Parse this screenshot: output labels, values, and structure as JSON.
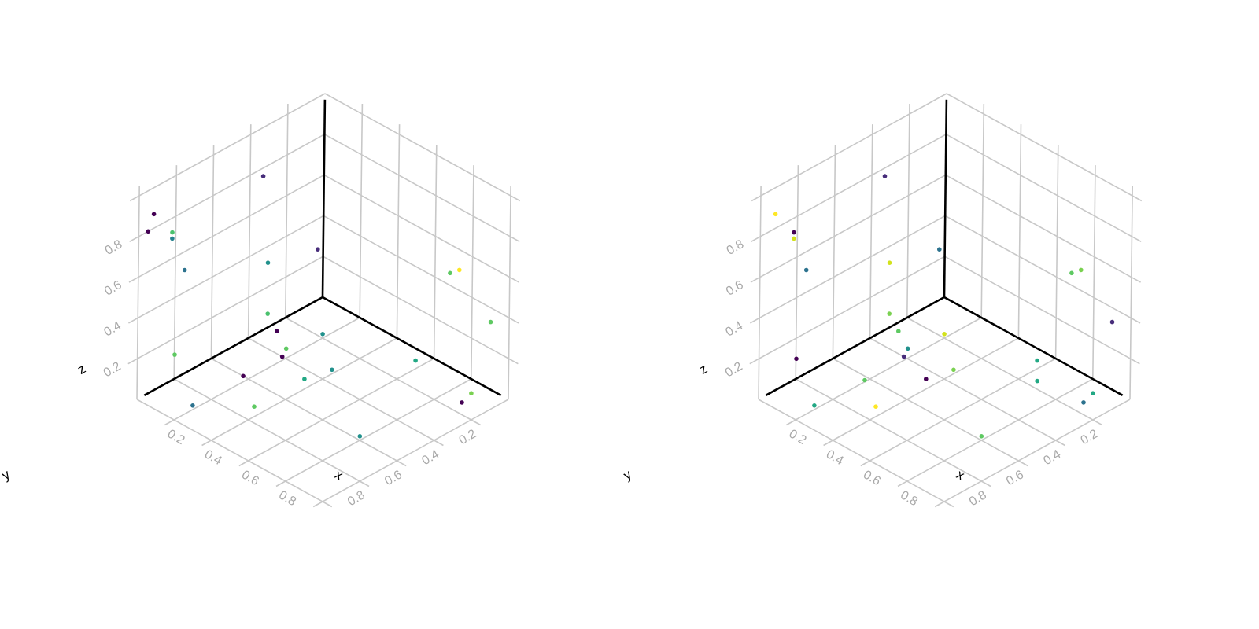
{
  "chart_data": [
    {
      "type": "scatter3d",
      "axes": {
        "x": {
          "label": "x",
          "ticks": [
            "0.2",
            "0.4",
            "0.6",
            "0.8"
          ]
        },
        "y": {
          "label": "y",
          "ticks": [
            "0.2",
            "0.4",
            "0.6",
            "0.8"
          ]
        },
        "z": {
          "label": "z",
          "ticks": [
            "0.2",
            "0.4",
            "0.6",
            "0.8"
          ]
        }
      },
      "grid": true,
      "colormap": "viridis",
      "points": [
        {
          "x": 0.05,
          "y": 0.97,
          "z": 0.92,
          "color": "#440154"
        },
        {
          "x": 0.05,
          "y": 0.38,
          "z": 0.81,
          "color": "#472c7a"
        },
        {
          "x": 0.02,
          "y": 0.97,
          "z": 0.82,
          "color": "#440154"
        },
        {
          "x": 0.1,
          "y": 0.92,
          "z": 0.83,
          "color": "#4ac16d"
        },
        {
          "x": 0.1,
          "y": 0.92,
          "z": 0.8,
          "color": "#26828e"
        },
        {
          "x": 0.05,
          "y": 0.8,
          "z": 0.56,
          "color": "#2c728e"
        },
        {
          "x": 0.15,
          "y": 0.95,
          "z": 0.27,
          "color": "#5ec962"
        },
        {
          "x": 0.25,
          "y": 0.55,
          "z": 0.32,
          "color": "#4ac16d"
        },
        {
          "x": 0.3,
          "y": 0.55,
          "z": 0.26,
          "color": "#440154"
        },
        {
          "x": 0.1,
          "y": 0.4,
          "z": 0.42,
          "color": "#21918c"
        },
        {
          "x": 0.05,
          "y": 0.08,
          "z": 0.3,
          "color": "#472c7a"
        },
        {
          "x": 0.35,
          "y": 0.78,
          "z": 0.18,
          "color": "#440154"
        },
        {
          "x": 0.4,
          "y": 0.62,
          "z": 0.22,
          "color": "#440154"
        },
        {
          "x": 0.45,
          "y": 0.65,
          "z": 0.3,
          "color": "#5ec962"
        },
        {
          "x": 0.75,
          "y": 0.02,
          "z": 0.52,
          "color": "#fde725"
        },
        {
          "x": 0.7,
          "y": 0.02,
          "z": 0.48,
          "color": "#5ec962"
        },
        {
          "x": 0.95,
          "y": 0.05,
          "z": 0.38,
          "color": "#5ec962"
        },
        {
          "x": 0.2,
          "y": 0.2,
          "z": 0.02,
          "color": "#21918c"
        },
        {
          "x": 0.5,
          "y": 0.6,
          "z": 0.15,
          "color": "#22a884"
        },
        {
          "x": 0.45,
          "y": 0.82,
          "z": 0.1,
          "color": "#5ec962"
        },
        {
          "x": 0.4,
          "y": 0.35,
          "z": 0.02,
          "color": "#21918c"
        },
        {
          "x": 0.6,
          "y": 0.1,
          "z": 0.04,
          "color": "#22a884"
        },
        {
          "x": 0.9,
          "y": 0.1,
          "z": 0.03,
          "color": "#7ad151"
        },
        {
          "x": 0.9,
          "y": 0.15,
          "z": 0.01,
          "color": "#440154"
        },
        {
          "x": 0.8,
          "y": 0.6,
          "z": 0.02,
          "color": "#21918c"
        },
        {
          "x": 0.2,
          "y": 0.9,
          "z": 0.02,
          "color": "#2c728e"
        }
      ]
    },
    {
      "type": "scatter3d",
      "axes": {
        "x": {
          "label": "x",
          "ticks": [
            "0.2",
            "0.4",
            "0.6",
            "0.8"
          ]
        },
        "y": {
          "label": "y",
          "ticks": [
            "0.2",
            "0.4",
            "0.6",
            "0.8"
          ]
        },
        "z": {
          "label": "z",
          "ticks": [
            "0.2",
            "0.4",
            "0.6",
            "0.8"
          ]
        }
      },
      "grid": true,
      "colormap": "viridis",
      "points": [
        {
          "x": 0.05,
          "y": 0.97,
          "z": 0.92,
          "color": "#fde725"
        },
        {
          "x": 0.05,
          "y": 0.38,
          "z": 0.81,
          "color": "#472c7a"
        },
        {
          "x": 0.1,
          "y": 0.92,
          "z": 0.83,
          "color": "#440154"
        },
        {
          "x": 0.1,
          "y": 0.92,
          "z": 0.8,
          "color": "#d2e21b"
        },
        {
          "x": 0.05,
          "y": 0.8,
          "z": 0.56,
          "color": "#2c728e"
        },
        {
          "x": 0.15,
          "y": 0.95,
          "z": 0.25,
          "color": "#440154"
        },
        {
          "x": 0.25,
          "y": 0.55,
          "z": 0.32,
          "color": "#7ad151"
        },
        {
          "x": 0.3,
          "y": 0.55,
          "z": 0.26,
          "color": "#5ec962"
        },
        {
          "x": 0.1,
          "y": 0.4,
          "z": 0.42,
          "color": "#d2e21b"
        },
        {
          "x": 0.05,
          "y": 0.08,
          "z": 0.3,
          "color": "#2c728e"
        },
        {
          "x": 0.35,
          "y": 0.78,
          "z": 0.16,
          "color": "#5ec962"
        },
        {
          "x": 0.4,
          "y": 0.62,
          "z": 0.22,
          "color": "#472c7a"
        },
        {
          "x": 0.45,
          "y": 0.65,
          "z": 0.3,
          "color": "#21918c"
        },
        {
          "x": 0.75,
          "y": 0.02,
          "z": 0.52,
          "color": "#7ad151"
        },
        {
          "x": 0.7,
          "y": 0.02,
          "z": 0.48,
          "color": "#5ec962"
        },
        {
          "x": 0.95,
          "y": 0.05,
          "z": 0.38,
          "color": "#472c7a"
        },
        {
          "x": 0.2,
          "y": 0.2,
          "z": 0.02,
          "color": "#d2e21b"
        },
        {
          "x": 0.5,
          "y": 0.6,
          "z": 0.15,
          "color": "#440154"
        },
        {
          "x": 0.45,
          "y": 0.82,
          "z": 0.1,
          "color": "#fde725"
        },
        {
          "x": 0.4,
          "y": 0.35,
          "z": 0.02,
          "color": "#7ad151"
        },
        {
          "x": 0.6,
          "y": 0.1,
          "z": 0.04,
          "color": "#22a884"
        },
        {
          "x": 0.7,
          "y": 0.2,
          "z": 0.04,
          "color": "#22a884"
        },
        {
          "x": 0.9,
          "y": 0.1,
          "z": 0.03,
          "color": "#22a884"
        },
        {
          "x": 0.9,
          "y": 0.15,
          "z": 0.01,
          "color": "#2c728e"
        },
        {
          "x": 0.8,
          "y": 0.6,
          "z": 0.02,
          "color": "#5ec962"
        },
        {
          "x": 0.2,
          "y": 0.9,
          "z": 0.02,
          "color": "#22a884"
        }
      ]
    }
  ]
}
